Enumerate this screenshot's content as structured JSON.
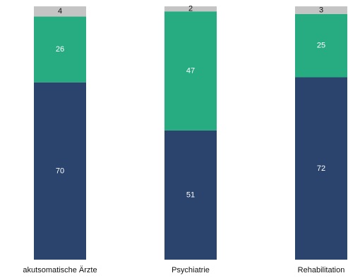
{
  "chart_data": {
    "type": "bar",
    "stacked": true,
    "normalized_percent": true,
    "categories": [
      "akutsomatische Ärzte",
      "Psychiatrie",
      "Rehabilitation"
    ],
    "series": [
      {
        "values": [
          70,
          51,
          72
        ],
        "color": "#2a446d",
        "label_color": "#ffffff"
      },
      {
        "values": [
          26,
          47,
          25
        ],
        "color": "#27ab81",
        "label_color": "#ffffff"
      },
      {
        "values": [
          4,
          2,
          3
        ],
        "color": "#c4c4c4",
        "label_color": "#111111"
      }
    ],
    "ylim": [
      0,
      100
    ],
    "grid": false,
    "legend": "none"
  }
}
